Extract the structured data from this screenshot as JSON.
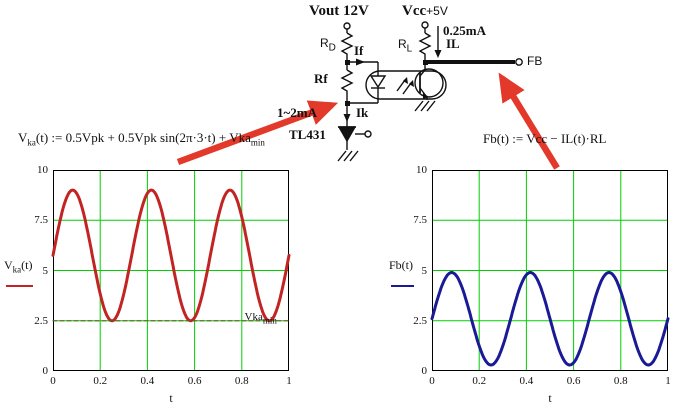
{
  "colors": {
    "arrow_red": "#e2392b",
    "grid_green": "#00cf00",
    "vka_trace": "#c22424",
    "fb_trace": "#1a1a96",
    "dashed_min": "#5f5f22"
  },
  "schematic": {
    "vout_label": "Vout 12V",
    "vcc_label": "Vcc",
    "vcc_value": "+5V",
    "rd_base": "R",
    "rd_sub": "D",
    "rl_base": "R",
    "rl_sub": "L",
    "if_label": "If",
    "rf_label": "Rf",
    "il_current": "0.25mA",
    "il_label": "IL",
    "fb_label": "FB",
    "ik_range": "1~2mA",
    "ik_label": "Ik",
    "tl431_label": "TL431"
  },
  "formulas": {
    "left": {
      "base": "V",
      "sub": "ka",
      "mid": "(t) := 0.5Vpk + 0.5Vpk sin(2π·3·t) + Vka",
      "sub2": "min"
    },
    "right": {
      "text": "Fb(t) := Vcc − IL(t)·RL"
    }
  },
  "chart_data": [
    {
      "type": "line",
      "xlabel": "t",
      "ylabel_parts": {
        "base": "V",
        "sub": "ka",
        "suffix": "(t)"
      },
      "xlim": [
        0,
        1
      ],
      "ylim": [
        0,
        10
      ],
      "x_ticks": [
        {
          "v": 0,
          "label": "0"
        },
        {
          "v": 0.2,
          "label": "0.2"
        },
        {
          "v": 0.4,
          "label": "0.4"
        },
        {
          "v": 0.6,
          "label": "0.6"
        },
        {
          "v": 0.8,
          "label": "0.8"
        },
        {
          "v": 1,
          "label": "1"
        }
      ],
      "y_ticks": [
        {
          "v": 0,
          "label": "0"
        },
        {
          "v": 2.5,
          "label": "2.5"
        },
        {
          "v": 5,
          "label": "5"
        },
        {
          "v": 7.5,
          "label": "7.5"
        },
        {
          "v": 10,
          "label": "10"
        }
      ],
      "grid": true,
      "grid_color": "#00cf00",
      "series": [
        {
          "name": "Vka(t)",
          "model": "sine",
          "mean": 5.75,
          "amplitude": 3.25,
          "frequency_hz": 3,
          "phase": 0,
          "color": "#c22424",
          "width": 3,
          "dash": null
        },
        {
          "name": "Vka_min",
          "model": "constant",
          "value": 2.5,
          "color": "#5f5f22",
          "width": 1.2,
          "dash": "4,3"
        }
      ],
      "annotation": {
        "base": "Vka",
        "sub": "min",
        "x": 0.88,
        "y": 2.5
      }
    },
    {
      "type": "line",
      "xlabel": "t",
      "ylabel_parts": {
        "base": "Fb(t)",
        "sub": "",
        "suffix": ""
      },
      "xlim": [
        0,
        1
      ],
      "ylim": [
        0,
        10
      ],
      "x_ticks": [
        {
          "v": 0,
          "label": "0"
        },
        {
          "v": 0.2,
          "label": "0.2"
        },
        {
          "v": 0.4,
          "label": "0.4"
        },
        {
          "v": 0.6,
          "label": "0.6"
        },
        {
          "v": 0.8,
          "label": "0.8"
        },
        {
          "v": 1,
          "label": "1"
        }
      ],
      "y_ticks": [
        {
          "v": 0,
          "label": "0"
        },
        {
          "v": 2.5,
          "label": "2.5"
        },
        {
          "v": 5,
          "label": "5"
        },
        {
          "v": 7.5,
          "label": "7.5"
        },
        {
          "v": 10,
          "label": "10"
        }
      ],
      "grid": true,
      "grid_color": "#00cf00",
      "series": [
        {
          "name": "Fb(t)",
          "model": "sine",
          "mean": 2.6,
          "amplitude": 2.3,
          "frequency_hz": 3,
          "phase": 0,
          "color": "#1a1a96",
          "width": 3,
          "dash": null
        }
      ]
    }
  ]
}
